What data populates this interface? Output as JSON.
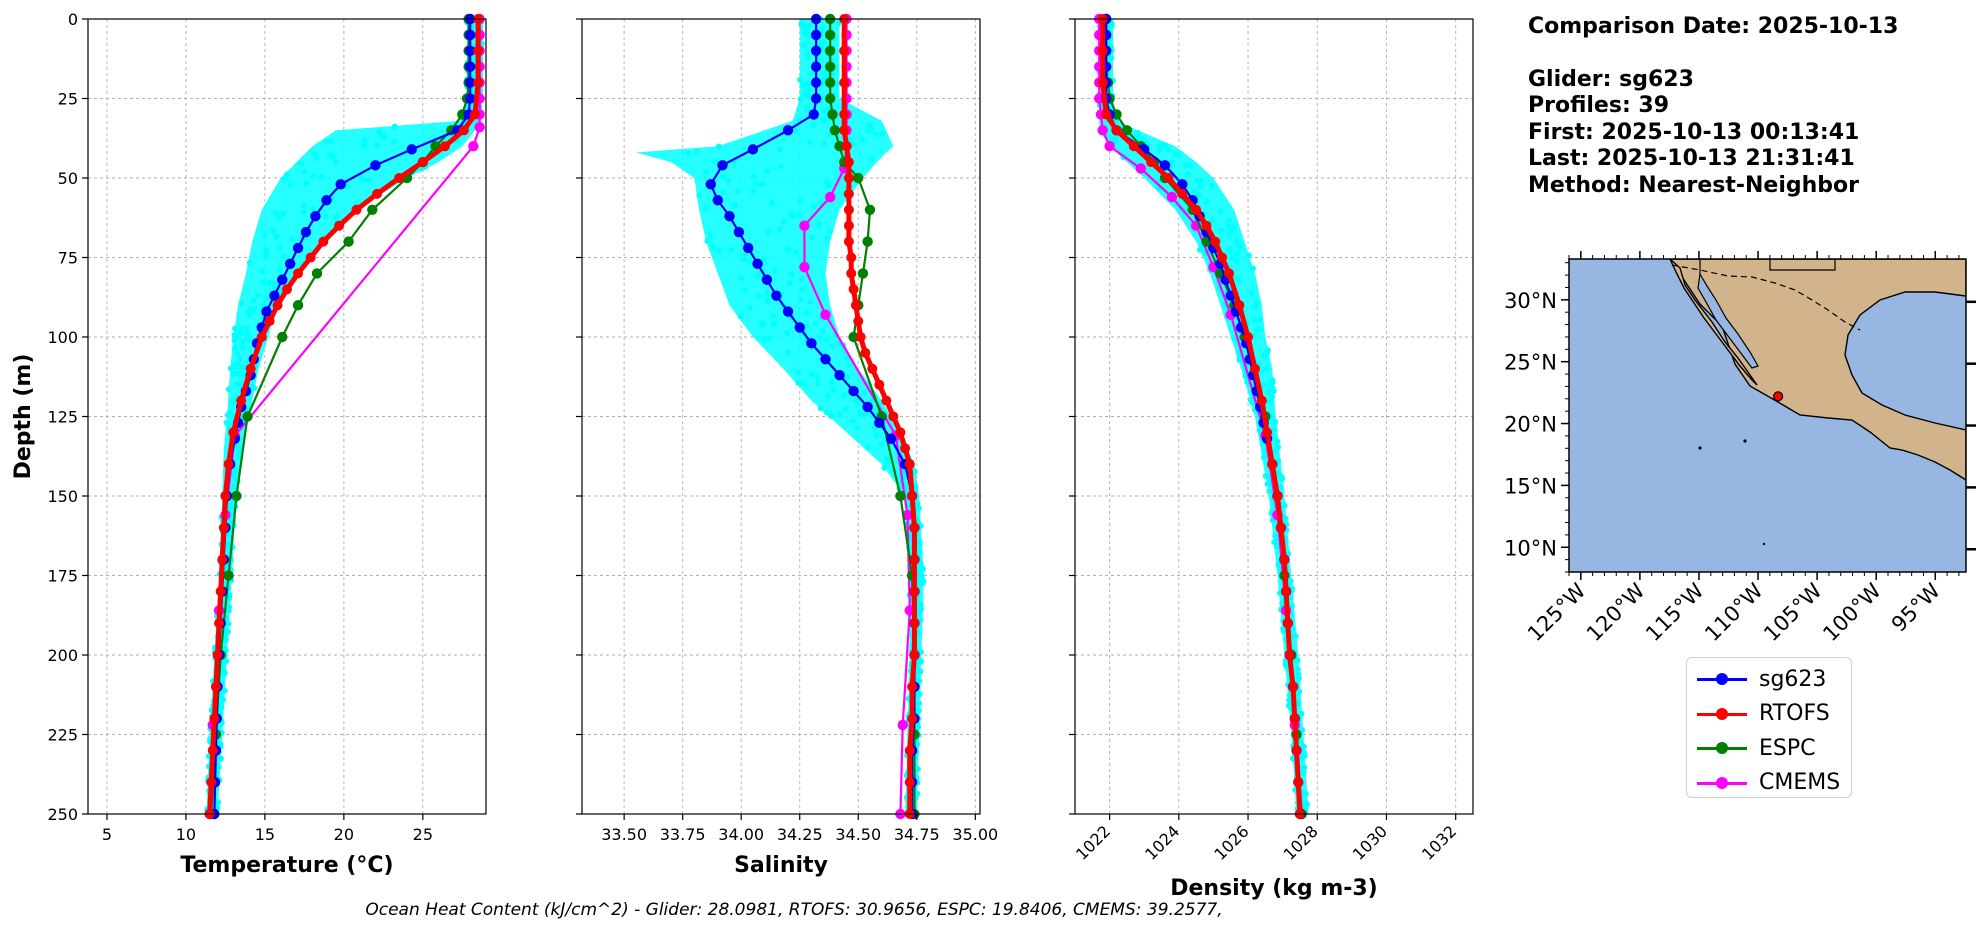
{
  "info": {
    "comparison_date": "Comparison Date: 2025-10-13",
    "glider": "Glider: sg623",
    "profiles": "Profiles: 39",
    "first": "First: 2025-10-13 00:13:41",
    "last": "Last: 2025-10-13 21:31:41",
    "method": "Method: Nearest-Neighbor"
  },
  "footer": "Ocean Heat Content (kJ/cm^2) - Glider: 28.0981,  RTOFS: 30.9656,  ESPC: 19.8406,  CMEMS: 39.2577,",
  "legend": [
    {
      "name": "sg623",
      "color": "#0000ff"
    },
    {
      "name": "RTOFS",
      "color": "#ff0000"
    },
    {
      "name": "ESPC",
      "color": "#008000"
    },
    {
      "name": "CMEMS",
      "color": "#ff00ff"
    }
  ],
  "colors": {
    "glider_profiles": "#00ffff",
    "grid": "#b0b0b0",
    "land": "#d2b48c",
    "ocean": "#97b6e1"
  },
  "chart_data": [
    {
      "type": "line",
      "xlabel": "Temperature (°C)",
      "ylabel": "Depth (m)",
      "xlim": [
        3.8,
        29
      ],
      "ylim": [
        250,
        0
      ],
      "xticks": [
        5,
        10,
        15,
        20,
        25
      ],
      "yticks": [
        0,
        25,
        50,
        75,
        100,
        125,
        150,
        175,
        200,
        225,
        250
      ],
      "grid": true,
      "scatter_band": {
        "name": "glider profiles",
        "color": "#00ffff",
        "depth": [
          0,
          25,
          32,
          35,
          40,
          45,
          50,
          60,
          70,
          80,
          90,
          100,
          110,
          125,
          135,
          150,
          175,
          200,
          225,
          250
        ],
        "min": [
          27.8,
          27.8,
          27.5,
          19.5,
          18,
          17,
          16,
          14.8,
          14.2,
          13.8,
          13.3,
          13,
          12.8,
          12.6,
          12.4,
          12.3,
          12.1,
          11.8,
          11.5,
          11.3
        ],
        "max": [
          28.8,
          28.8,
          28.4,
          28.3,
          27.5,
          26,
          24,
          20.8,
          18.8,
          17.2,
          15.8,
          15.2,
          14.6,
          14,
          13.6,
          13.2,
          12.9,
          12.6,
          12.3,
          12
        ]
      },
      "series": [
        {
          "name": "sg623",
          "color": "#0000ff",
          "depth": [
            0,
            5,
            10,
            15,
            20,
            25,
            30,
            35,
            41,
            46,
            52,
            57,
            62,
            67,
            72,
            77,
            82,
            87,
            92,
            97,
            102,
            107,
            112,
            117,
            122,
            127,
            132,
            140,
            150,
            160,
            170,
            180,
            190,
            200,
            210,
            220,
            230,
            240,
            250
          ],
          "values": [
            28,
            28,
            28,
            28,
            28,
            28,
            27.9,
            27.2,
            24.3,
            22,
            19.8,
            18.9,
            18.2,
            17.6,
            17.1,
            16.6,
            16.1,
            15.6,
            15.1,
            14.8,
            14.5,
            14.3,
            14.1,
            13.8,
            13.5,
            13.3,
            13.1,
            12.8,
            12.6,
            12.5,
            12.4,
            12.3,
            12.2,
            12.1,
            12,
            11.95,
            11.9,
            11.85,
            11.8
          ]
        },
        {
          "name": "RTOFS",
          "color": "#ff0000",
          "depth": [
            0,
            10,
            20,
            30,
            35,
            40,
            45,
            50,
            55,
            60,
            65,
            70,
            75,
            80,
            85,
            90,
            95,
            100,
            110,
            120,
            130,
            140,
            150,
            160,
            170,
            180,
            190,
            200,
            210,
            220,
            230,
            240,
            250
          ],
          "values": [
            28.5,
            28.5,
            28.5,
            28.3,
            27.6,
            26.4,
            25,
            23.5,
            22.1,
            20.8,
            19.7,
            18.7,
            17.9,
            17.1,
            16.4,
            15.8,
            15.3,
            14.8,
            14.1,
            13.5,
            13,
            12.7,
            12.5,
            12.4,
            12.3,
            12.2,
            12.1,
            12,
            11.9,
            11.8,
            11.7,
            11.6,
            11.5
          ]
        },
        {
          "name": "ESPC",
          "color": "#008000",
          "depth": [
            0,
            5,
            10,
            15,
            20,
            25,
            30,
            35,
            40,
            45,
            50,
            60,
            70,
            80,
            90,
            100,
            125,
            150,
            175,
            200,
            225,
            250
          ],
          "values": [
            27.9,
            27.9,
            27.9,
            27.9,
            27.9,
            27.8,
            27.5,
            26.8,
            25.8,
            25,
            24,
            21.8,
            20.3,
            18.3,
            17.1,
            16.1,
            13.9,
            13.2,
            12.7,
            12.2,
            11.9,
            11.6
          ]
        },
        {
          "name": "CMEMS",
          "color": "#ff00ff",
          "depth": [
            0,
            5,
            10,
            15,
            20,
            25,
            30,
            34,
            40,
            131,
            156,
            186,
            222,
            250
          ],
          "values": [
            28.6,
            28.6,
            28.6,
            28.6,
            28.6,
            28.6,
            28.6,
            28.6,
            28.2,
            13.1,
            12.5,
            12.1,
            11.7,
            11.5
          ]
        }
      ]
    },
    {
      "type": "line",
      "xlabel": "Salinity",
      "ylabel": "",
      "xlim": [
        33.32,
        35.02
      ],
      "ylim": [
        250,
        0
      ],
      "xticks": [
        33.5,
        33.75,
        34.0,
        34.25,
        34.5,
        34.75,
        35.0
      ],
      "yticks": [
        0,
        25,
        50,
        75,
        100,
        125,
        150,
        175,
        200,
        225,
        250
      ],
      "grid": true,
      "scatter_band": {
        "name": "glider profiles",
        "color": "#00ffff",
        "depth": [
          0,
          25,
          32,
          40,
          42,
          45,
          50,
          60,
          70,
          80,
          90,
          100,
          110,
          120,
          130,
          140,
          150,
          175,
          200,
          225,
          250
        ],
        "min": [
          34.25,
          34.25,
          34.22,
          33.9,
          33.55,
          33.7,
          33.8,
          33.82,
          33.85,
          33.9,
          33.95,
          34.05,
          34.18,
          34.3,
          34.45,
          34.6,
          34.7,
          34.72,
          34.72,
          34.71,
          34.7
        ],
        "max": [
          34.42,
          34.42,
          34.6,
          34.65,
          34.62,
          34.58,
          34.52,
          34.42,
          34.38,
          34.36,
          34.38,
          34.42,
          34.5,
          34.6,
          34.68,
          34.74,
          34.76,
          34.78,
          34.77,
          34.76,
          34.75
        ]
      },
      "series": [
        {
          "name": "sg623",
          "color": "#0000ff",
          "depth": [
            0,
            5,
            10,
            15,
            20,
            25,
            30,
            35,
            41,
            46,
            52,
            57,
            62,
            67,
            72,
            77,
            82,
            87,
            92,
            97,
            102,
            107,
            112,
            117,
            122,
            127,
            132,
            140,
            150,
            160,
            170,
            180,
            190,
            200,
            210,
            220,
            230,
            240,
            250
          ],
          "values": [
            34.32,
            34.32,
            34.32,
            34.32,
            34.32,
            34.32,
            34.31,
            34.2,
            34.05,
            33.92,
            33.87,
            33.9,
            33.95,
            33.99,
            34.03,
            34.07,
            34.11,
            34.15,
            34.2,
            34.25,
            34.3,
            34.36,
            34.42,
            34.48,
            34.54,
            34.59,
            34.64,
            34.7,
            34.73,
            34.74,
            34.74,
            34.74,
            34.74,
            34.74,
            34.74,
            34.74,
            34.73,
            34.73,
            34.73
          ]
        },
        {
          "name": "RTOFS",
          "color": "#ff0000",
          "depth": [
            0,
            10,
            20,
            30,
            35,
            40,
            45,
            50,
            55,
            60,
            65,
            70,
            75,
            80,
            85,
            90,
            95,
            100,
            105,
            110,
            115,
            120,
            125,
            130,
            135,
            140,
            150,
            160,
            170,
            180,
            190,
            200,
            210,
            220,
            230,
            240,
            250
          ],
          "values": [
            34.44,
            34.44,
            34.44,
            34.44,
            34.44,
            34.45,
            34.46,
            34.46,
            34.46,
            34.46,
            34.46,
            34.46,
            34.47,
            34.47,
            34.48,
            34.49,
            34.5,
            34.51,
            34.53,
            34.56,
            34.59,
            34.62,
            34.65,
            34.68,
            34.7,
            34.72,
            34.73,
            34.74,
            34.74,
            34.74,
            34.74,
            34.74,
            34.73,
            34.73,
            34.72,
            34.72,
            34.72
          ]
        },
        {
          "name": "ESPC",
          "color": "#008000",
          "depth": [
            0,
            5,
            10,
            15,
            20,
            25,
            30,
            35,
            40,
            45,
            50,
            60,
            70,
            80,
            90,
            100,
            125,
            150,
            175,
            200,
            225,
            250
          ],
          "values": [
            34.38,
            34.38,
            34.38,
            34.38,
            34.38,
            34.38,
            34.39,
            34.4,
            34.42,
            34.44,
            34.5,
            34.55,
            34.54,
            34.52,
            34.5,
            34.48,
            34.6,
            34.68,
            34.73,
            34.74,
            34.74,
            34.74
          ]
        },
        {
          "name": "CMEMS",
          "color": "#ff00ff",
          "depth": [
            0,
            5,
            10,
            15,
            20,
            25,
            30,
            35,
            40,
            47,
            56,
            65,
            78,
            93,
            131,
            156,
            186,
            222,
            250
          ],
          "values": [
            34.45,
            34.45,
            34.45,
            34.45,
            34.45,
            34.45,
            34.45,
            34.45,
            34.45,
            34.44,
            34.38,
            34.27,
            34.27,
            34.36,
            34.66,
            34.71,
            34.72,
            34.69,
            34.68
          ]
        }
      ]
    },
    {
      "type": "line",
      "xlabel": "Density (kg m-3)",
      "ylabel": "",
      "xlim": [
        1021.0,
        1032.5
      ],
      "ylim": [
        250,
        0
      ],
      "xticks": [
        1022,
        1024,
        1026,
        1028,
        1030,
        1032
      ],
      "yticks": [
        0,
        25,
        50,
        75,
        100,
        125,
        150,
        175,
        200,
        225,
        250
      ],
      "grid": true,
      "scatter_band": {
        "name": "glider profiles",
        "color": "#00ffff",
        "depth": [
          0,
          25,
          32,
          35,
          40,
          45,
          50,
          60,
          70,
          80,
          90,
          100,
          110,
          125,
          150,
          175,
          200,
          225,
          250
        ],
        "min": [
          1021.7,
          1021.7,
          1021.7,
          1021.7,
          1022.0,
          1022.5,
          1023.0,
          1023.9,
          1024.5,
          1024.9,
          1025.2,
          1025.5,
          1025.8,
          1026.2,
          1026.6,
          1026.85,
          1027.05,
          1027.25,
          1027.4
        ],
        "max": [
          1022.1,
          1022.1,
          1022.2,
          1022.8,
          1023.9,
          1024.5,
          1025.0,
          1025.6,
          1025.9,
          1026.2,
          1026.4,
          1026.5,
          1026.7,
          1026.8,
          1027.05,
          1027.25,
          1027.45,
          1027.6,
          1027.75
        ]
      },
      "series": [
        {
          "name": "sg623",
          "color": "#0000ff",
          "depth": [
            0,
            5,
            10,
            15,
            20,
            25,
            30,
            35,
            41,
            46,
            52,
            57,
            62,
            67,
            72,
            77,
            82,
            87,
            92,
            97,
            102,
            107,
            112,
            117,
            122,
            127,
            132,
            140,
            150,
            160,
            170,
            180,
            190,
            200,
            210,
            220,
            230,
            240,
            250
          ],
          "values": [
            1021.9,
            1021.9,
            1021.9,
            1021.9,
            1021.9,
            1021.9,
            1022.0,
            1022.2,
            1023.0,
            1023.6,
            1024.1,
            1024.4,
            1024.6,
            1024.8,
            1025.0,
            1025.2,
            1025.35,
            1025.5,
            1025.65,
            1025.8,
            1025.95,
            1026.05,
            1026.15,
            1026.25,
            1026.35,
            1026.45,
            1026.55,
            1026.7,
            1026.85,
            1026.95,
            1027.05,
            1027.1,
            1027.15,
            1027.2,
            1027.3,
            1027.35,
            1027.4,
            1027.45,
            1027.5
          ]
        },
        {
          "name": "RTOFS",
          "color": "#ff0000",
          "depth": [
            0,
            10,
            20,
            30,
            35,
            40,
            45,
            50,
            55,
            60,
            65,
            70,
            75,
            80,
            90,
            100,
            110,
            120,
            130,
            140,
            150,
            160,
            170,
            180,
            190,
            200,
            210,
            220,
            230,
            240,
            250
          ],
          "values": [
            1021.8,
            1021.8,
            1021.8,
            1021.9,
            1022.2,
            1022.7,
            1023.2,
            1023.7,
            1024.1,
            1024.5,
            1024.8,
            1025.05,
            1025.25,
            1025.45,
            1025.75,
            1026.0,
            1026.2,
            1026.4,
            1026.55,
            1026.7,
            1026.85,
            1026.95,
            1027.05,
            1027.1,
            1027.15,
            1027.2,
            1027.3,
            1027.35,
            1027.4,
            1027.45,
            1027.5
          ]
        },
        {
          "name": "ESPC",
          "color": "#008000",
          "depth": [
            0,
            5,
            10,
            15,
            20,
            25,
            30,
            35,
            40,
            45,
            50,
            60,
            70,
            80,
            90,
            100,
            125,
            150,
            175,
            200,
            225,
            250
          ],
          "values": [
            1021.9,
            1021.9,
            1021.9,
            1021.9,
            1021.95,
            1022.0,
            1022.2,
            1022.5,
            1022.9,
            1023.3,
            1023.6,
            1024.4,
            1024.8,
            1025.2,
            1025.6,
            1025.9,
            1026.5,
            1026.85,
            1027.05,
            1027.25,
            1027.4,
            1027.55
          ]
        },
        {
          "name": "CMEMS",
          "color": "#ff00ff",
          "depth": [
            0,
            5,
            10,
            15,
            20,
            25,
            30,
            35,
            40,
            47,
            56,
            65,
            78,
            93,
            131,
            156,
            186,
            222,
            250
          ],
          "values": [
            1021.7,
            1021.7,
            1021.7,
            1021.7,
            1021.7,
            1021.7,
            1021.75,
            1021.8,
            1022.0,
            1022.9,
            1023.8,
            1024.5,
            1025.0,
            1025.5,
            1026.5,
            1026.85,
            1027.1,
            1027.35,
            1027.55
          ]
        }
      ]
    }
  ],
  "map": {
    "lon_ticks": [
      "125°W",
      "120°W",
      "115°W",
      "110°W",
      "105°W",
      "100°W",
      "95°W"
    ],
    "lat_ticks": [
      "30°N",
      "25°N",
      "20°N",
      "15°N",
      "10°N"
    ],
    "lon_range": [
      -126,
      -92.4
    ],
    "lat_range": [
      8,
      33.3
    ],
    "marker": {
      "lon": -108.3,
      "lat": 22.2,
      "color": "#ff0000"
    }
  }
}
